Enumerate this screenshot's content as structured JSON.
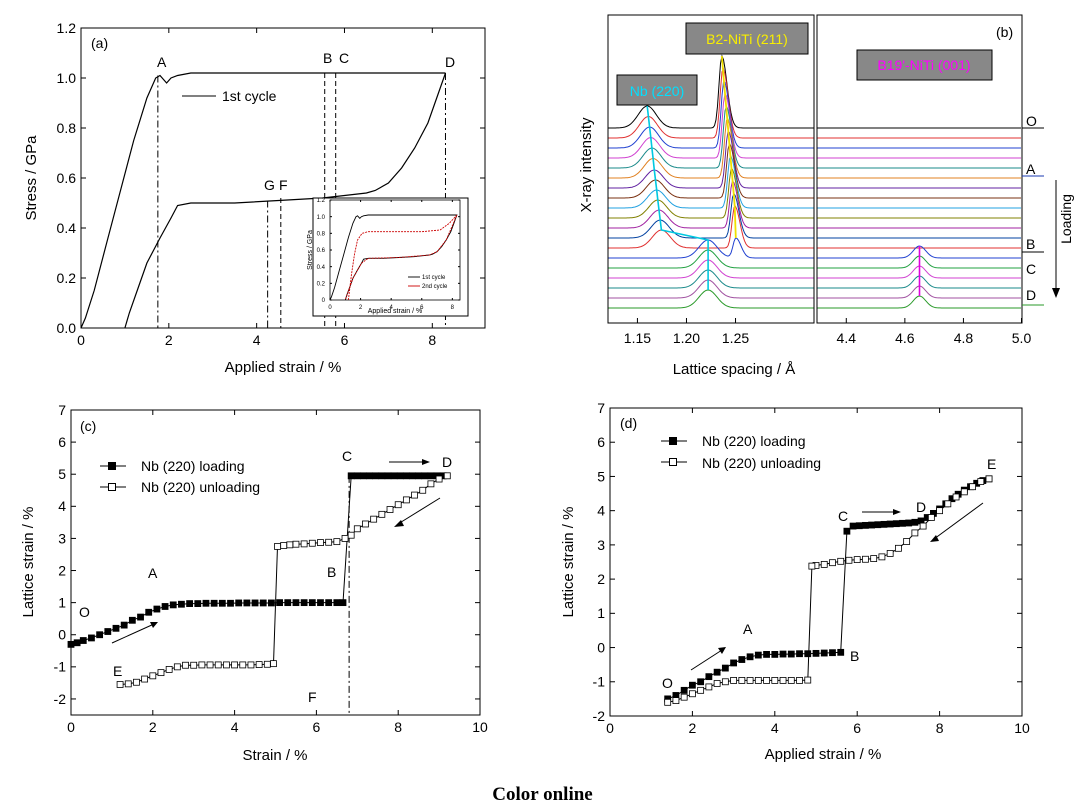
{
  "caption": "Color online",
  "colors": {
    "cyan": "#00c8e0",
    "yellow": "#f0e000",
    "magenta": "#e000e0",
    "red2nd": "#cc0000"
  },
  "chart_data": [
    {
      "id": "a",
      "type": "line",
      "panel_label": "(a)",
      "xlabel": "Applied strain / %",
      "ylabel": "Stress / GPa",
      "xlim": [
        0,
        9.2
      ],
      "ylim": [
        0,
        1.2
      ],
      "xticks": [
        0,
        2,
        4,
        6,
        8
      ],
      "yticks": [
        0.0,
        0.2,
        0.4,
        0.6,
        0.8,
        1.0,
        1.2
      ],
      "legend": "1st cycle",
      "series": [
        {
          "name": "1st cycle",
          "values": [
            [
              0,
              0
            ],
            [
              0.1,
              0.04
            ],
            [
              0.3,
              0.15
            ],
            [
              0.6,
              0.35
            ],
            [
              0.9,
              0.55
            ],
            [
              1.2,
              0.75
            ],
            [
              1.5,
              0.92
            ],
            [
              1.7,
              1.0
            ],
            [
              1.8,
              1.01
            ],
            [
              1.95,
              0.98
            ],
            [
              2.05,
              1.0
            ],
            [
              2.2,
              1.01
            ],
            [
              2.5,
              1.02
            ],
            [
              3.5,
              1.02
            ],
            [
              5,
              1.02
            ],
            [
              6.5,
              1.02
            ],
            [
              7.5,
              1.02
            ],
            [
              8.3,
              1.02
            ]
          ]
        },
        {
          "name": "unloading",
          "values": [
            [
              8.3,
              1.02
            ],
            [
              8.1,
              0.92
            ],
            [
              7.9,
              0.82
            ],
            [
              7.6,
              0.72
            ],
            [
              7.3,
              0.64
            ],
            [
              7.0,
              0.58
            ],
            [
              6.7,
              0.55
            ],
            [
              6.5,
              0.54
            ],
            [
              6.0,
              0.53
            ],
            [
              5.5,
              0.52
            ],
            [
              4.5,
              0.51
            ],
            [
              3.5,
              0.5
            ],
            [
              2.5,
              0.5
            ],
            [
              2.2,
              0.49
            ],
            [
              2.05,
              0.44
            ],
            [
              1.8,
              0.36
            ],
            [
              1.5,
              0.26
            ],
            [
              1.3,
              0.16
            ],
            [
              1.1,
              0.06
            ],
            [
              1.0,
              0
            ]
          ]
        }
      ],
      "vlines": [
        {
          "label": "A",
          "x": 1.75,
          "top": 1.01
        },
        {
          "label": "B",
          "x": 5.55,
          "top": 1.02
        },
        {
          "label": "C",
          "x": 5.8,
          "top": 1.02
        },
        {
          "label": "D",
          "x": 8.3,
          "top": 1.02
        },
        {
          "label": "G",
          "x": 4.25,
          "top": 0.51
        },
        {
          "label": "F",
          "x": 4.55,
          "top": 0.52
        }
      ],
      "inset": {
        "xlabel": "Applied strain / %",
        "ylabel": "Stress / GPa",
        "xlim": [
          0,
          8.5
        ],
        "ylim": [
          0,
          1.2
        ],
        "xticks": [
          0,
          2,
          4,
          6,
          8
        ],
        "yticks": [
          0,
          0.2,
          0.4,
          0.6,
          0.8,
          1.0,
          1.2
        ],
        "legend": [
          "1st cycle",
          "2nd cycle"
        ]
      }
    },
    {
      "id": "b",
      "type": "line",
      "panel_label": "(b)",
      "xlabel": "Lattice spacing / Å",
      "ylabel": "X-ray intensity",
      "xticks_left": [
        "1.15",
        "1.20",
        "1.25"
      ],
      "xticks_right": [
        "4.4",
        "4.6",
        "4.8",
        "5.0"
      ],
      "peak_labels": [
        "Nb (220)",
        "B2-NiTi (211)",
        "B19'-NiTi (001)"
      ],
      "right_labels": [
        "O",
        "A",
        "B",
        "C",
        "D"
      ],
      "loading_label": "Loading",
      "num_curves": 19
    },
    {
      "id": "c",
      "type": "scatter",
      "panel_label": "(c)",
      "xlabel": "Strain / %",
      "ylabel": "Lattice strain / %",
      "xlim": [
        0,
        10
      ],
      "ylim": [
        -2.5,
        7
      ],
      "xticks": [
        0,
        2,
        4,
        6,
        8,
        10
      ],
      "yticks": [
        -2,
        -1,
        0,
        1,
        2,
        3,
        4,
        5,
        6,
        7
      ],
      "series": [
        {
          "name": "Nb (220) loading",
          "values": [
            [
              0,
              -0.3
            ],
            [
              0.15,
              -0.25
            ],
            [
              0.3,
              -0.18
            ],
            [
              0.5,
              -0.1
            ],
            [
              0.7,
              0.0
            ],
            [
              0.9,
              0.1
            ],
            [
              1.1,
              0.2
            ],
            [
              1.3,
              0.3
            ],
            [
              1.5,
              0.45
            ],
            [
              1.7,
              0.55
            ],
            [
              1.9,
              0.7
            ],
            [
              2.1,
              0.8
            ],
            [
              2.3,
              0.88
            ],
            [
              2.5,
              0.93
            ],
            [
              2.7,
              0.95
            ],
            [
              2.9,
              0.97
            ],
            [
              3.1,
              0.97
            ],
            [
              3.3,
              0.98
            ],
            [
              3.5,
              0.98
            ],
            [
              3.7,
              0.98
            ],
            [
              3.9,
              0.98
            ],
            [
              4.1,
              0.99
            ],
            [
              4.3,
              0.99
            ],
            [
              4.5,
              0.99
            ],
            [
              4.7,
              0.99
            ],
            [
              4.9,
              0.99
            ],
            [
              5.1,
              1.0
            ],
            [
              5.3,
              1.0
            ],
            [
              5.5,
              1.0
            ],
            [
              5.7,
              1.0
            ],
            [
              5.9,
              1.0
            ],
            [
              6.1,
              1.0
            ],
            [
              6.3,
              1.0
            ],
            [
              6.5,
              1.0
            ],
            [
              6.65,
              1.0
            ],
            [
              6.85,
              4.95
            ],
            [
              7.0,
              4.95
            ],
            [
              7.15,
              4.95
            ],
            [
              7.3,
              4.95
            ],
            [
              7.45,
              4.95
            ],
            [
              7.6,
              4.95
            ],
            [
              7.75,
              4.95
            ],
            [
              7.9,
              4.95
            ],
            [
              8.05,
              4.95
            ],
            [
              8.2,
              4.95
            ],
            [
              8.35,
              4.95
            ],
            [
              8.5,
              4.95
            ],
            [
              8.65,
              4.95
            ],
            [
              8.8,
              4.95
            ],
            [
              8.95,
              4.95
            ],
            [
              9.1,
              4.95
            ]
          ]
        },
        {
          "name": "Nb (220) unloading",
          "values": [
            [
              9.2,
              4.95
            ],
            [
              9.0,
              4.85
            ],
            [
              8.8,
              4.7
            ],
            [
              8.6,
              4.5
            ],
            [
              8.4,
              4.35
            ],
            [
              8.2,
              4.2
            ],
            [
              8.0,
              4.05
            ],
            [
              7.8,
              3.9
            ],
            [
              7.6,
              3.75
            ],
            [
              7.4,
              3.6
            ],
            [
              7.2,
              3.45
            ],
            [
              7.0,
              3.3
            ],
            [
              6.85,
              3.1
            ],
            [
              6.7,
              3.0
            ],
            [
              6.5,
              2.9
            ],
            [
              6.3,
              2.88
            ],
            [
              6.1,
              2.87
            ],
            [
              5.9,
              2.85
            ],
            [
              5.7,
              2.83
            ],
            [
              5.5,
              2.82
            ],
            [
              5.35,
              2.8
            ],
            [
              5.2,
              2.78
            ],
            [
              5.05,
              2.75
            ],
            [
              4.95,
              -0.9
            ],
            [
              4.8,
              -0.92
            ],
            [
              4.6,
              -0.93
            ],
            [
              4.4,
              -0.94
            ],
            [
              4.2,
              -0.94
            ],
            [
              4.0,
              -0.94
            ],
            [
              3.8,
              -0.94
            ],
            [
              3.6,
              -0.94
            ],
            [
              3.4,
              -0.94
            ],
            [
              3.2,
              -0.94
            ],
            [
              3.0,
              -0.95
            ],
            [
              2.8,
              -0.95
            ],
            [
              2.6,
              -1.0
            ],
            [
              2.4,
              -1.08
            ],
            [
              2.2,
              -1.18
            ],
            [
              2.0,
              -1.28
            ],
            [
              1.8,
              -1.38
            ],
            [
              1.6,
              -1.48
            ],
            [
              1.4,
              -1.53
            ],
            [
              1.2,
              -1.55
            ]
          ]
        }
      ],
      "point_labels": [
        "O",
        "A",
        "B",
        "C",
        "D",
        "E",
        "F"
      ],
      "vline_x": 6.8
    },
    {
      "id": "d",
      "type": "scatter",
      "panel_label": "(d)",
      "xlabel": "Applied strain / %",
      "ylabel": "Lattice strain / %",
      "xlim": [
        0,
        10
      ],
      "ylim": [
        -2,
        7
      ],
      "xticks": [
        0,
        2,
        4,
        6,
        8,
        10
      ],
      "yticks": [
        -2,
        -1,
        0,
        1,
        2,
        3,
        4,
        5,
        6,
        7
      ],
      "series": [
        {
          "name": "Nb (220) loading",
          "values": [
            [
              1.4,
              -1.5
            ],
            [
              1.6,
              -1.4
            ],
            [
              1.8,
              -1.25
            ],
            [
              2.0,
              -1.1
            ],
            [
              2.2,
              -1.0
            ],
            [
              2.4,
              -0.85
            ],
            [
              2.6,
              -0.72
            ],
            [
              2.8,
              -0.6
            ],
            [
              3.0,
              -0.45
            ],
            [
              3.2,
              -0.35
            ],
            [
              3.4,
              -0.27
            ],
            [
              3.6,
              -0.22
            ],
            [
              3.8,
              -0.2
            ],
            [
              4.0,
              -0.2
            ],
            [
              4.2,
              -0.19
            ],
            [
              4.4,
              -0.19
            ],
            [
              4.6,
              -0.18
            ],
            [
              4.8,
              -0.18
            ],
            [
              5.0,
              -0.17
            ],
            [
              5.2,
              -0.16
            ],
            [
              5.4,
              -0.15
            ],
            [
              5.6,
              -0.14
            ],
            [
              5.75,
              3.4
            ],
            [
              5.9,
              3.55
            ],
            [
              6.05,
              3.56
            ],
            [
              6.2,
              3.57
            ],
            [
              6.35,
              3.58
            ],
            [
              6.5,
              3.59
            ],
            [
              6.65,
              3.6
            ],
            [
              6.8,
              3.61
            ],
            [
              6.95,
              3.62
            ],
            [
              7.1,
              3.63
            ],
            [
              7.25,
              3.64
            ],
            [
              7.4,
              3.66
            ],
            [
              7.55,
              3.7
            ],
            [
              7.7,
              3.8
            ],
            [
              7.85,
              3.92
            ],
            [
              8.0,
              4.05
            ],
            [
              8.15,
              4.2
            ],
            [
              8.3,
              4.35
            ],
            [
              8.45,
              4.48
            ],
            [
              8.6,
              4.6
            ],
            [
              8.75,
              4.7
            ],
            [
              8.9,
              4.8
            ],
            [
              9.05,
              4.88
            ],
            [
              9.2,
              4.93
            ]
          ]
        },
        {
          "name": "Nb (220) unloading",
          "values": [
            [
              9.2,
              4.93
            ],
            [
              9.0,
              4.85
            ],
            [
              8.8,
              4.7
            ],
            [
              8.6,
              4.55
            ],
            [
              8.4,
              4.4
            ],
            [
              8.2,
              4.2
            ],
            [
              8.0,
              4.0
            ],
            [
              7.8,
              3.8
            ],
            [
              7.6,
              3.55
            ],
            [
              7.4,
              3.35
            ],
            [
              7.2,
              3.1
            ],
            [
              7.0,
              2.9
            ],
            [
              6.8,
              2.75
            ],
            [
              6.6,
              2.65
            ],
            [
              6.4,
              2.6
            ],
            [
              6.2,
              2.58
            ],
            [
              6.0,
              2.57
            ],
            [
              5.8,
              2.55
            ],
            [
              5.6,
              2.52
            ],
            [
              5.4,
              2.48
            ],
            [
              5.2,
              2.43
            ],
            [
              5.0,
              2.4
            ],
            [
              4.9,
              2.38
            ],
            [
              4.8,
              -0.95
            ],
            [
              4.6,
              -0.96
            ],
            [
              4.4,
              -0.96
            ],
            [
              4.2,
              -0.96
            ],
            [
              4.0,
              -0.96
            ],
            [
              3.8,
              -0.96
            ],
            [
              3.6,
              -0.96
            ],
            [
              3.4,
              -0.96
            ],
            [
              3.2,
              -0.96
            ],
            [
              3.0,
              -0.96
            ],
            [
              2.8,
              -1.0
            ],
            [
              2.6,
              -1.05
            ],
            [
              2.4,
              -1.15
            ],
            [
              2.2,
              -1.25
            ],
            [
              2.0,
              -1.35
            ],
            [
              1.8,
              -1.45
            ],
            [
              1.6,
              -1.55
            ],
            [
              1.4,
              -1.6
            ]
          ]
        }
      ],
      "point_labels": [
        "O",
        "A",
        "B",
        "C",
        "D",
        "E"
      ]
    }
  ]
}
